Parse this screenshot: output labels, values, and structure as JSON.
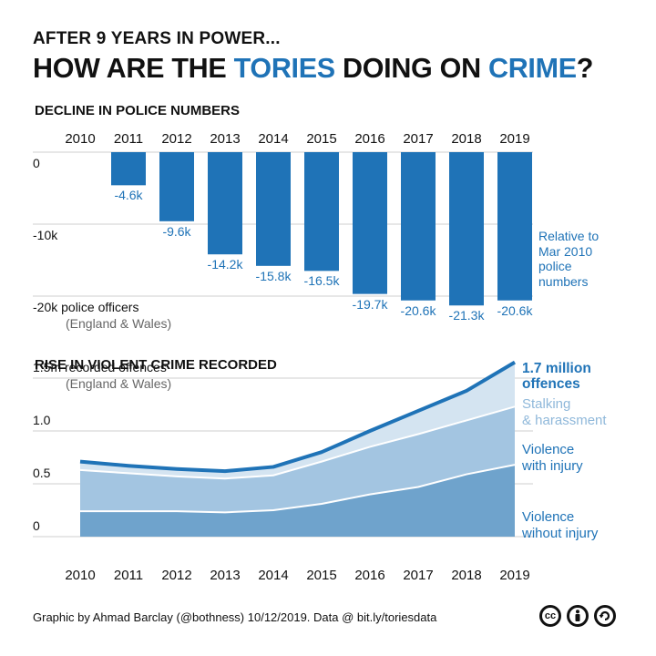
{
  "header": {
    "kicker": "AFTER 9 YEARS IN POWER...",
    "headline_parts": [
      "HOW ARE THE ",
      "TORIES",
      " DOING ON ",
      "CRIME",
      "?"
    ]
  },
  "chart_data": [
    {
      "type": "bar",
      "title": "DECLINE IN POLICE NUMBERS",
      "categories": [
        "2010",
        "2011",
        "2012",
        "2013",
        "2014",
        "2015",
        "2016",
        "2017",
        "2018",
        "2019"
      ],
      "values": [
        0,
        -4.6,
        -9.6,
        -14.2,
        -15.8,
        -16.5,
        -19.7,
        -20.6,
        -21.3,
        -20.6
      ],
      "data_labels": [
        "",
        "-4.6k",
        "-9.6k",
        "-14.2k",
        "-15.8k",
        "-16.5k",
        "-19.7k",
        "-20.6k",
        "-21.3k",
        "-20.6k"
      ],
      "y_tick_labels": [
        "0",
        "-10k",
        "-20k police officers"
      ],
      "y_ticks": [
        0,
        -10,
        -20
      ],
      "ylabel_sub": "(England & Wales)",
      "ylim": [
        -22,
        0
      ],
      "annotation": [
        "Relative to",
        "Mar 2010",
        "police",
        "numbers"
      ],
      "color": "#1f73b7"
    },
    {
      "type": "area",
      "title": "RISE IN VIOLENT CRIME RECORDED",
      "x": [
        "2010",
        "2011",
        "2012",
        "2013",
        "2014",
        "2015",
        "2016",
        "2017",
        "2018",
        "2019"
      ],
      "series": [
        {
          "name": "Violence wihout injury",
          "label_lines": [
            "Violence",
            "wihout injury"
          ],
          "values": [
            0.24,
            0.24,
            0.24,
            0.23,
            0.25,
            0.31,
            0.4,
            0.47,
            0.59,
            0.68
          ],
          "color": "#6fa3cc"
        },
        {
          "name": "Violence with injury",
          "label_lines": [
            "Violence",
            "with injury"
          ],
          "values": [
            0.39,
            0.36,
            0.33,
            0.32,
            0.33,
            0.4,
            0.45,
            0.5,
            0.51,
            0.55
          ],
          "color": "#a3c5e1"
        },
        {
          "name": "Stalking & harassment",
          "label_lines": [
            "Stalking",
            "& harassment"
          ],
          "values": [
            0.08,
            0.07,
            0.07,
            0.07,
            0.08,
            0.09,
            0.15,
            0.22,
            0.28,
            0.42
          ],
          "color": "#d4e4f1"
        }
      ],
      "total_label_lines": [
        "1.7 million",
        "offences"
      ],
      "y_tick_labels": [
        "0",
        "0.5",
        "1.0",
        "1.5m recorded offences"
      ],
      "y_ticks": [
        0,
        0.5,
        1.0,
        1.5
      ],
      "ylabel_sub": "(England & Wales)",
      "ylim": [
        0,
        1.7
      ],
      "line_color": "#1f73b7"
    }
  ],
  "footer": {
    "credit": "Graphic by Ahmad Barclay (@bothness) 10/12/2019. Data @ bit.ly/toriesdata",
    "license_icons": [
      "cc-icon",
      "by-icon",
      "sa-icon"
    ],
    "cc_text": "cc"
  }
}
